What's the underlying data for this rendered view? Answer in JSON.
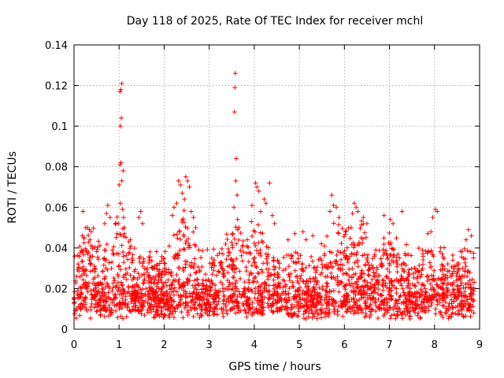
{
  "chart_data": {
    "type": "scatter",
    "title": "Day 118 of 2025, Rate Of TEC Index for receiver mchl",
    "xlabel": "GPS time / hours",
    "ylabel": "ROTI / TECUs",
    "xlim": [
      0,
      9
    ],
    "ylim": [
      0,
      0.14
    ],
    "xticks": [
      0,
      1,
      2,
      3,
      4,
      5,
      6,
      7,
      8,
      9
    ],
    "xtick_labels": [
      "0",
      "1",
      "2",
      "3",
      "4",
      "5",
      "6",
      "7",
      "8",
      "9"
    ],
    "yticks": [
      0,
      0.02,
      0.04,
      0.06,
      0.08,
      0.1,
      0.12,
      0.14
    ],
    "ytick_labels": [
      "0",
      "0.02",
      "0.04",
      "0.06",
      "0.08",
      "0.1",
      "0.12",
      "0.14"
    ],
    "grid": true,
    "marker": "+",
    "color": "#ff0000",
    "data_extent_hours": [
      0.0,
      8.88
    ],
    "series": [
      {
        "name": "ROTI",
        "points": [
          [
            1.02,
            0.117
          ],
          [
            1.04,
            0.118
          ],
          [
            1.06,
            0.121
          ],
          [
            1.03,
            0.1
          ],
          [
            1.05,
            0.104
          ],
          [
            1.02,
            0.081
          ],
          [
            1.04,
            0.082
          ],
          [
            1.09,
            0.078
          ],
          [
            1.0,
            0.071
          ],
          [
            1.06,
            0.073
          ],
          [
            1.03,
            0.062
          ],
          [
            1.08,
            0.059
          ],
          [
            1.1,
            0.055
          ],
          [
            1.12,
            0.047
          ],
          [
            0.98,
            0.052
          ],
          [
            3.58,
            0.126
          ],
          [
            3.57,
            0.119
          ],
          [
            3.56,
            0.107
          ],
          [
            3.6,
            0.084
          ],
          [
            3.59,
            0.073
          ],
          [
            3.62,
            0.066
          ],
          [
            3.55,
            0.06
          ],
          [
            3.63,
            0.054
          ],
          [
            3.66,
            0.05
          ],
          [
            3.52,
            0.047
          ],
          [
            2.48,
            0.075
          ],
          [
            2.52,
            0.073
          ],
          [
            2.56,
            0.07
          ],
          [
            2.32,
            0.073
          ],
          [
            2.36,
            0.071
          ],
          [
            2.4,
            0.067
          ],
          [
            2.45,
            0.064
          ],
          [
            2.28,
            0.062
          ],
          [
            2.22,
            0.06
          ],
          [
            2.6,
            0.058
          ],
          [
            2.65,
            0.055
          ],
          [
            2.7,
            0.05
          ],
          [
            2.18,
            0.056
          ],
          [
            4.03,
            0.072
          ],
          [
            4.06,
            0.07
          ],
          [
            4.1,
            0.068
          ],
          [
            4.34,
            0.072
          ],
          [
            4.22,
            0.064
          ],
          [
            4.26,
            0.062
          ],
          [
            4.14,
            0.058
          ],
          [
            4.4,
            0.056
          ],
          [
            3.95,
            0.061
          ],
          [
            4.45,
            0.052
          ],
          [
            5.72,
            0.066
          ],
          [
            5.76,
            0.061
          ],
          [
            5.82,
            0.06
          ],
          [
            5.68,
            0.058
          ],
          [
            5.88,
            0.055
          ],
          [
            6.22,
            0.062
          ],
          [
            6.26,
            0.06
          ],
          [
            6.3,
            0.058
          ],
          [
            6.18,
            0.057
          ],
          [
            6.42,
            0.055
          ],
          [
            6.5,
            0.052
          ],
          [
            6.15,
            0.05
          ],
          [
            0.2,
            0.058
          ],
          [
            0.26,
            0.05
          ],
          [
            0.3,
            0.05
          ],
          [
            0.34,
            0.049
          ],
          [
            0.38,
            0.048
          ],
          [
            0.75,
            0.061
          ],
          [
            0.72,
            0.057
          ],
          [
            0.8,
            0.055
          ],
          [
            0.68,
            0.052
          ],
          [
            1.48,
            0.058
          ],
          [
            1.44,
            0.055
          ],
          [
            1.52,
            0.052
          ],
          [
            7.28,
            0.058
          ],
          [
            7.02,
            0.054
          ],
          [
            7.08,
            0.052
          ],
          [
            6.88,
            0.056
          ],
          [
            8.02,
            0.059
          ],
          [
            8.06,
            0.058
          ],
          [
            7.96,
            0.055
          ],
          [
            7.85,
            0.047
          ],
          [
            7.92,
            0.048
          ],
          [
            8.75,
            0.049
          ],
          [
            8.82,
            0.046
          ],
          [
            8.7,
            0.044
          ],
          [
            5.08,
            0.048
          ],
          [
            5.15,
            0.044
          ],
          [
            5.3,
            0.046
          ],
          [
            4.9,
            0.047
          ],
          [
            4.75,
            0.044
          ]
        ],
        "noise_model": {
          "description": "dense background band of points",
          "time_range": [
            0.0,
            8.88
          ],
          "baseline_range": [
            0.005,
            0.035
          ],
          "typical_value": 0.013
        }
      }
    ]
  }
}
